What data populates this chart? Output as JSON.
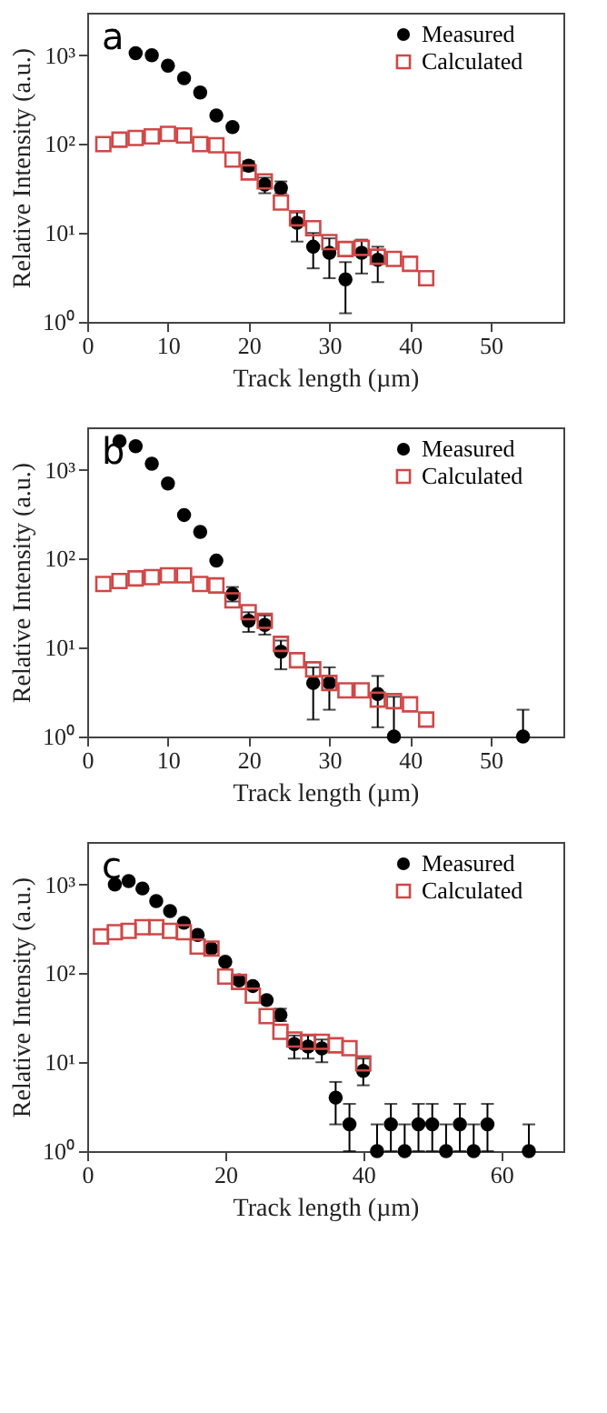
{
  "chart_data": [
    {
      "type": "scatter",
      "annotations": [
        "a"
      ],
      "xlabel": "Track length (µm)",
      "ylabel": "Relative Intensity (a.u.)",
      "log": "y",
      "grid": false,
      "legend": "top right",
      "xlim": [
        0,
        59
      ],
      "xticks": [
        0,
        10,
        20,
        30,
        40,
        50
      ],
      "ylim": [
        1,
        3000
      ],
      "yticks": [
        {
          "value": 1,
          "label": "10⁰"
        },
        {
          "value": 10,
          "label": "10¹"
        },
        {
          "value": 100,
          "label": "10²"
        },
        {
          "value": 1000,
          "label": "10³"
        }
      ],
      "series": [
        {
          "name": "Measured",
          "color": "#000000",
          "marker": "circle",
          "x": [
            6,
            8,
            10,
            12,
            14,
            16,
            18,
            20,
            22,
            24,
            26,
            28,
            30,
            32,
            34,
            36
          ],
          "values": [
            1050,
            1000,
            760,
            550,
            380,
            210,
            155,
            57,
            35,
            32,
            13,
            7,
            6,
            3,
            6,
            5
          ],
          "errors": [
            null,
            null,
            null,
            null,
            null,
            null,
            null,
            [
              50,
              64
            ],
            [
              28,
              42
            ],
            [
              28,
              38
            ],
            [
              8,
              17
            ],
            [
              4,
              10
            ],
            [
              3.1,
              8.7
            ],
            [
              1.25,
              4.7
            ],
            [
              3.5,
              8.4
            ],
            [
              2.8,
              7
            ]
          ]
        },
        {
          "name": "Calculated",
          "color": "#d04848",
          "marker": "square",
          "x": [
            2,
            4,
            6,
            8,
            10,
            12,
            14,
            16,
            18,
            20,
            22,
            24,
            26,
            28,
            30,
            32,
            34,
            36,
            38,
            40,
            42
          ],
          "values": [
            100,
            112,
            117,
            122,
            130,
            125,
            100,
            97,
            67,
            48,
            38,
            22,
            14.6,
            11.3,
            7.9,
            6.6,
            6.8,
            5.4,
            5.1,
            4.5,
            3.1
          ]
        }
      ]
    },
    {
      "type": "scatter",
      "annotations": [
        "b"
      ],
      "xlabel": "Track length (µm)",
      "ylabel": "Relative Intensity (a.u.)",
      "log": "y",
      "grid": false,
      "legend": "top right",
      "xlim": [
        0,
        59
      ],
      "xticks": [
        0,
        10,
        20,
        30,
        40,
        50
      ],
      "ylim": [
        1,
        3000
      ],
      "yticks": [
        {
          "value": 1,
          "label": "10⁰"
        },
        {
          "value": 10,
          "label": "10¹"
        },
        {
          "value": 100,
          "label": "10²"
        },
        {
          "value": 1000,
          "label": "10³"
        }
      ],
      "series": [
        {
          "name": "Measured",
          "color": "#000000",
          "marker": "circle",
          "x": [
            4,
            6,
            8,
            10,
            12,
            14,
            16,
            18,
            20,
            22,
            24,
            28,
            30,
            36,
            38,
            54
          ],
          "values": [
            2100,
            1840,
            1170,
            700,
            310,
            200,
            95,
            40,
            20,
            18,
            9,
            4,
            4,
            3,
            1,
            1
          ],
          "errors": [
            null,
            null,
            null,
            null,
            null,
            null,
            null,
            [
              33,
              48
            ],
            [
              15,
              25
            ],
            [
              14,
              23
            ],
            [
              5.7,
              12
            ],
            [
              1.55,
              6
            ],
            [
              2,
              6
            ],
            [
              1.27,
              4.8
            ],
            [
              1,
              2.8
            ],
            [
              1,
              2
            ]
          ]
        },
        {
          "name": "Calculated",
          "color": "#d04848",
          "marker": "square",
          "x": [
            2,
            4,
            6,
            8,
            10,
            12,
            14,
            16,
            18,
            20,
            22,
            24,
            26,
            28,
            30,
            32,
            34,
            36,
            38,
            40,
            42
          ],
          "values": [
            52,
            56,
            60,
            62,
            65,
            65,
            52,
            50,
            34,
            25,
            20,
            11,
            7.2,
            5.7,
            4,
            3.3,
            3.3,
            2.6,
            2.5,
            2.3,
            1.55
          ]
        }
      ]
    },
    {
      "type": "scatter",
      "annotations": [
        "c"
      ],
      "xlabel": "Track length (µm)",
      "ylabel": "Relative Intensity (a.u.)",
      "log": "y",
      "grid": false,
      "legend": "top right",
      "xlim": [
        0,
        69
      ],
      "xticks": [
        0,
        20,
        40,
        60
      ],
      "ylim": [
        1,
        3000
      ],
      "yticks": [
        {
          "value": 1,
          "label": "10⁰"
        },
        {
          "value": 10,
          "label": "10¹"
        },
        {
          "value": 100,
          "label": "10²"
        },
        {
          "value": 1000,
          "label": "10³"
        }
      ],
      "series": [
        {
          "name": "Measured",
          "color": "#000000",
          "marker": "circle",
          "x": [
            4,
            6,
            8,
            10,
            12,
            14,
            16,
            18,
            20,
            22,
            24,
            26,
            28,
            30,
            32,
            34,
            36,
            38,
            40,
            42,
            44,
            46,
            48,
            50,
            52,
            54,
            56,
            58,
            64
          ],
          "values": [
            1000,
            1090,
            900,
            650,
            500,
            370,
            270,
            190,
            135,
            83,
            72,
            50,
            34,
            16,
            15,
            14.3,
            4,
            2,
            8,
            1,
            2,
            1,
            2,
            2,
            1,
            2,
            1,
            2,
            1
          ],
          "errors": [
            null,
            null,
            null,
            null,
            null,
            null,
            null,
            null,
            null,
            null,
            null,
            null,
            [
              29,
              40
            ],
            [
              11,
              20
            ],
            [
              11,
              20
            ],
            [
              10,
              18
            ],
            [
              2,
              6
            ],
            [
              1,
              3.4
            ],
            [
              5.5,
              11
            ],
            [
              1,
              2
            ],
            [
              1,
              3.4
            ],
            [
              1,
              2
            ],
            [
              1,
              3.4
            ],
            [
              1,
              3.4
            ],
            [
              1,
              2
            ],
            [
              1,
              3.4
            ],
            [
              1,
              2
            ],
            [
              1,
              3.4
            ],
            [
              1,
              2
            ]
          ]
        },
        {
          "name": "Calculated",
          "color": "#d04848",
          "marker": "square",
          "x": [
            2,
            4,
            6,
            8,
            10,
            12,
            14,
            16,
            18,
            20,
            22,
            24,
            26,
            28,
            30,
            32,
            34,
            36,
            38,
            40
          ],
          "values": [
            260,
            290,
            300,
            330,
            330,
            300,
            290,
            200,
            190,
            92,
            80,
            56,
            33,
            22,
            18,
            17,
            17,
            15.5,
            14.4,
            9.7
          ]
        }
      ]
    }
  ]
}
